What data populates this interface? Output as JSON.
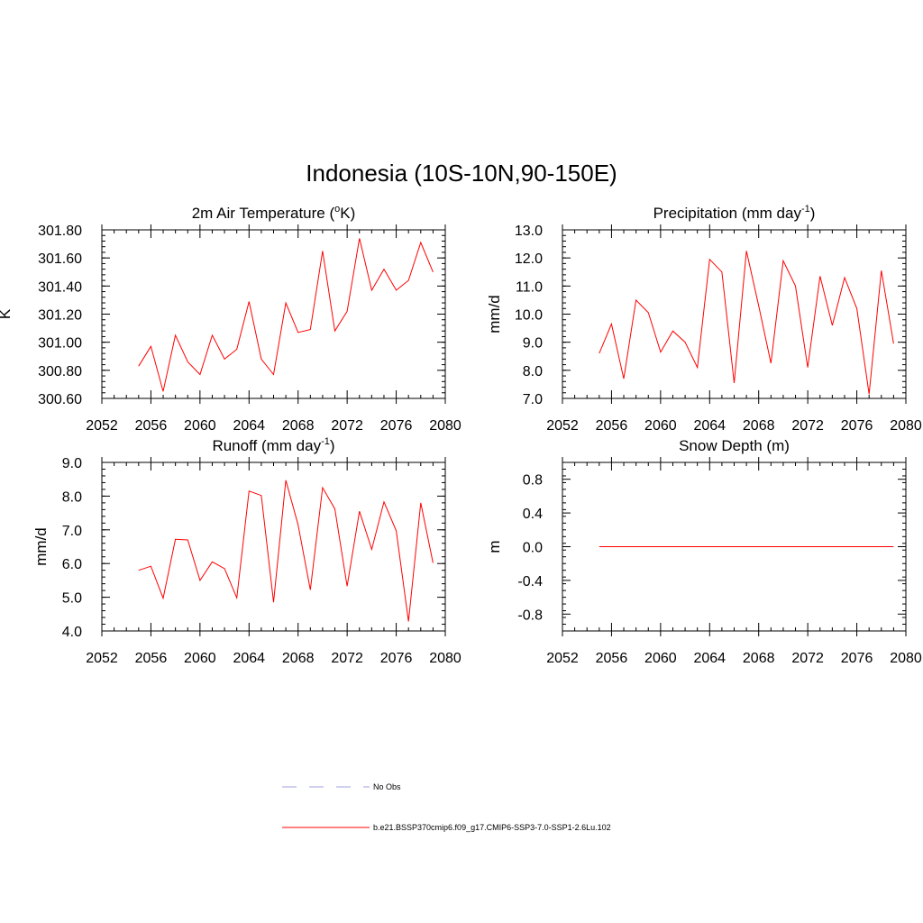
{
  "figure": {
    "title": "Indonesia (10S-10N,90-150E)"
  },
  "colors": {
    "series_line": "#ff0000",
    "obs_line": "#a0a0e0",
    "axis": "#000000"
  },
  "chart_data": [
    {
      "type": "line",
      "title_main": "2m Air Temperature (",
      "title_sup": "o",
      "title_end": "K)",
      "ylabel": "K",
      "xlabel": "",
      "xlim": [
        2052,
        2080
      ],
      "ylim": [
        300.6,
        301.8
      ],
      "x_ticks": [
        2052,
        2056,
        2060,
        2064,
        2068,
        2072,
        2076,
        2080
      ],
      "y_ticks": [
        300.6,
        300.8,
        301.0,
        301.2,
        301.4,
        301.6,
        301.8
      ],
      "y_tick_labels": [
        "300.60",
        "300.80",
        "301.00",
        "301.20",
        "301.40",
        "301.60",
        "301.80"
      ],
      "grid": false,
      "x": [
        2055,
        2056,
        2057,
        2058,
        2059,
        2060,
        2061,
        2062,
        2063,
        2064,
        2065,
        2066,
        2067,
        2068,
        2069,
        2070,
        2071,
        2072,
        2073,
        2074,
        2075,
        2076,
        2077,
        2078,
        2079
      ],
      "series": [
        {
          "name": "b.e21.BSSP370cmip6.f09_g17.CMIP6-SSP3-7.0-SSP1-2.6Lu.102",
          "values": [
            300.83,
            300.97,
            300.65,
            301.05,
            300.86,
            300.77,
            301.05,
            300.88,
            300.95,
            301.29,
            300.88,
            300.77,
            301.28,
            301.07,
            301.09,
            301.65,
            301.08,
            301.22,
            301.74,
            301.37,
            301.52,
            301.37,
            301.44,
            301.71,
            301.5
          ]
        }
      ]
    },
    {
      "type": "line",
      "title_main": "Precipitation (mm day",
      "title_sup": "-1",
      "title_end": ")",
      "ylabel": "mm/d",
      "xlabel": "",
      "xlim": [
        2052,
        2080
      ],
      "ylim": [
        7.0,
        13.0
      ],
      "x_ticks": [
        2052,
        2056,
        2060,
        2064,
        2068,
        2072,
        2076,
        2080
      ],
      "y_ticks": [
        7.0,
        8.0,
        9.0,
        10.0,
        11.0,
        12.0,
        13.0
      ],
      "y_tick_labels": [
        "7.0",
        "8.0",
        "9.0",
        "10.0",
        "11.0",
        "12.0",
        "13.0"
      ],
      "grid": false,
      "x": [
        2055,
        2056,
        2057,
        2058,
        2059,
        2060,
        2061,
        2062,
        2063,
        2064,
        2065,
        2066,
        2067,
        2068,
        2069,
        2070,
        2071,
        2072,
        2073,
        2074,
        2075,
        2076,
        2077,
        2078,
        2079
      ],
      "series": [
        {
          "name": "b.e21.BSSP370cmip6.f09_g17.CMIP6-SSP3-7.0-SSP1-2.6Lu.102",
          "values": [
            8.6,
            9.65,
            7.7,
            10.5,
            10.05,
            8.65,
            9.4,
            9.0,
            8.1,
            11.95,
            11.5,
            7.55,
            12.25,
            10.3,
            8.25,
            11.9,
            11.0,
            8.1,
            11.35,
            9.6,
            11.3,
            10.2,
            7.15,
            11.55,
            8.95
          ]
        }
      ]
    },
    {
      "type": "line",
      "title_main": "Runoff (mm day",
      "title_sup": "-1",
      "title_end": ")",
      "ylabel": "mm/d",
      "xlabel": "",
      "xlim": [
        2052,
        2080
      ],
      "ylim": [
        4.0,
        9.0
      ],
      "x_ticks": [
        2052,
        2056,
        2060,
        2064,
        2068,
        2072,
        2076,
        2080
      ],
      "y_ticks": [
        4.0,
        5.0,
        6.0,
        7.0,
        8.0,
        9.0
      ],
      "y_tick_labels": [
        "4.0",
        "5.0",
        "6.0",
        "7.0",
        "8.0",
        "9.0"
      ],
      "grid": false,
      "x": [
        2055,
        2056,
        2057,
        2058,
        2059,
        2060,
        2061,
        2062,
        2063,
        2064,
        2065,
        2066,
        2067,
        2068,
        2069,
        2070,
        2071,
        2072,
        2073,
        2074,
        2075,
        2076,
        2077,
        2078,
        2079
      ],
      "series": [
        {
          "name": "b.e21.BSSP370cmip6.f09_g17.CMIP6-SSP3-7.0-SSP1-2.6Lu.102",
          "values": [
            5.8,
            5.92,
            4.97,
            6.72,
            6.7,
            5.5,
            6.05,
            5.85,
            4.98,
            8.15,
            8.02,
            4.85,
            8.47,
            7.15,
            5.22,
            8.25,
            7.62,
            5.33,
            7.55,
            6.42,
            7.83,
            6.97,
            4.28,
            7.8,
            6.02
          ]
        }
      ]
    },
    {
      "type": "line",
      "title_main": "Snow Depth (m)",
      "title_sup": "",
      "title_end": "",
      "ylabel": "m",
      "xlabel": "",
      "xlim": [
        2052,
        2080
      ],
      "ylim": [
        -1.0,
        1.0
      ],
      "x_ticks": [
        2052,
        2056,
        2060,
        2064,
        2068,
        2072,
        2076,
        2080
      ],
      "y_ticks": [
        -0.8,
        -0.4,
        0.0,
        0.4,
        0.8
      ],
      "y_tick_labels": [
        "-0.8",
        "-0.4",
        "0.0",
        "0.4",
        "0.8"
      ],
      "grid": false,
      "x": [
        2055,
        2056,
        2057,
        2058,
        2059,
        2060,
        2061,
        2062,
        2063,
        2064,
        2065,
        2066,
        2067,
        2068,
        2069,
        2070,
        2071,
        2072,
        2073,
        2074,
        2075,
        2076,
        2077,
        2078,
        2079
      ],
      "series": [
        {
          "name": "b.e21.BSSP370cmip6.f09_g17.CMIP6-SSP3-7.0-SSP1-2.6Lu.102",
          "values": [
            0,
            0,
            0,
            0,
            0,
            0,
            0,
            0,
            0,
            0,
            0,
            0,
            0,
            0,
            0,
            0,
            0,
            0,
            0,
            0,
            0,
            0,
            0,
            0,
            0
          ]
        }
      ]
    }
  ],
  "legend": {
    "placement": "bottom-center",
    "entries": [
      {
        "label": "No Obs",
        "style": "dashed",
        "color": "#a0a0e0"
      },
      {
        "label": "b.e21.BSSP370cmip6.f09_g17.CMIP6-SSP3-7.0-SSP1-2.6Lu.102",
        "style": "solid",
        "color": "#ff0000"
      }
    ]
  }
}
